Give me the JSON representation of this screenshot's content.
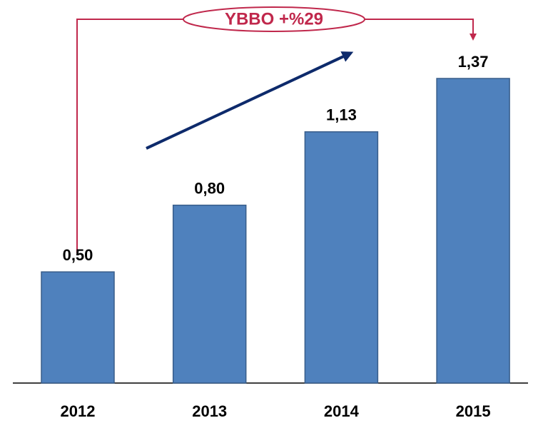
{
  "chart_data": {
    "type": "bar",
    "annotation": "YBBO +%29",
    "categories": [
      "2012",
      "2013",
      "2014",
      "2015"
    ],
    "values": [
      0.5,
      0.8,
      1.13,
      1.37
    ],
    "value_labels": [
      "0,50",
      "0,80",
      "1,13",
      "1,37"
    ],
    "color": "#4f81bd"
  }
}
